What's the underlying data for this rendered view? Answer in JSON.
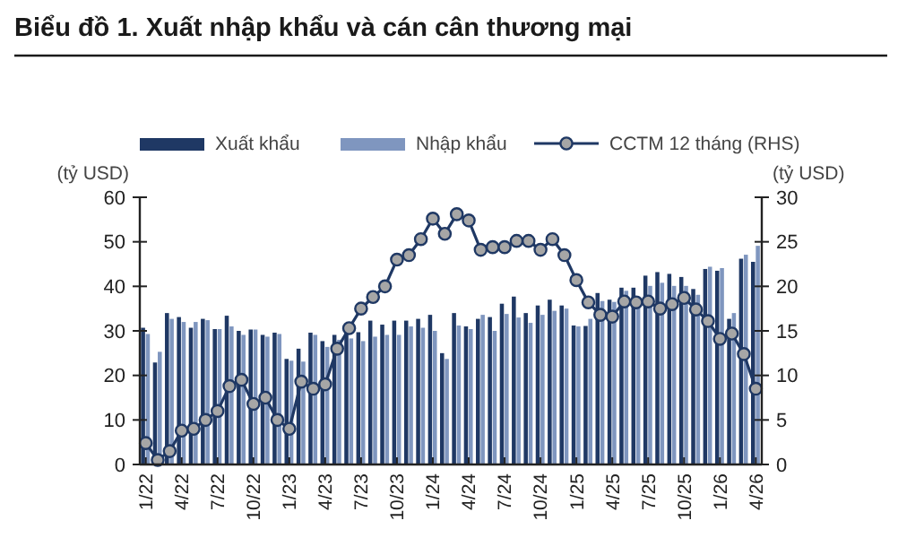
{
  "chart_data": {
    "type": "bar",
    "title": "Biểu đồ 1. Xuất nhập khẩu và cán cân thương mại",
    "ylabel": "(tỷ USD)",
    "y2label": "(tỷ USD)",
    "categories": [
      "1/22",
      null,
      null,
      "4/22",
      null,
      null,
      "7/22",
      null,
      null,
      "10/22",
      null,
      null,
      "1/23",
      null,
      null,
      "4/23",
      null,
      null,
      "7/23",
      null,
      null,
      "10/23",
      null,
      null,
      "1/24",
      null,
      null,
      "4/24",
      null,
      null,
      "7/24",
      null,
      null,
      "10/24",
      null,
      null,
      "1/25",
      null,
      null,
      "4/25",
      null,
      null,
      "7/25",
      null,
      null,
      "10/25",
      null,
      null,
      "1/26",
      null,
      null,
      "4/26"
    ],
    "series": [
      {
        "name": "Xuất khẩu",
        "color": "#1f3864",
        "values": [
          30.7,
          22.9,
          34.0,
          33.1,
          30.7,
          32.7,
          30.4,
          33.4,
          30.0,
          30.3,
          29.1,
          29.6,
          23.7,
          26.0,
          29.6,
          27.7,
          29.1,
          30.0,
          29.7,
          32.3,
          31.4,
          32.3,
          32.3,
          32.7,
          33.6,
          25.0,
          34.0,
          31.0,
          32.7,
          33.1,
          36.1,
          37.7,
          34.0,
          35.7,
          37.0,
          35.7,
          31.2,
          31.1,
          38.5,
          37.0,
          39.7,
          39.7,
          42.4,
          43.2,
          42.8,
          42.1,
          39.4,
          43.9,
          43.5,
          32.7,
          46.2,
          45.5
        ]
      },
      {
        "name": "Nhập khẩu",
        "color": "#7f96bf",
        "values": [
          29.3,
          25.3,
          32.7,
          32.0,
          32.0,
          32.4,
          30.4,
          31.0,
          29.1,
          30.3,
          28.7,
          29.3,
          23.3,
          23.1,
          29.1,
          26.4,
          28.0,
          28.3,
          27.7,
          28.7,
          29.1,
          29.1,
          31.0,
          30.7,
          30.0,
          23.7,
          31.2,
          30.4,
          33.6,
          30.0,
          33.8,
          33.0,
          31.8,
          33.6,
          34.5,
          35.0,
          31.0,
          32.7,
          36.7,
          36.5,
          39.0,
          37.7,
          40.1,
          40.8,
          40.1,
          40.1,
          38.1,
          44.4,
          44.1,
          34.0,
          47.1,
          49.1
        ]
      },
      {
        "name": "CCTM 12 tháng (RHS)",
        "type": "line",
        "axis": "y2",
        "color": "#1f3864",
        "values": [
          2.4,
          0.5,
          1.5,
          3.8,
          4,
          5,
          6,
          8.8,
          9.5,
          6.8,
          7.5,
          5,
          4,
          9.3,
          8.5,
          9,
          13,
          15.3,
          17.5,
          18.8,
          20,
          23,
          23.5,
          25.3,
          27.6,
          25.9,
          28.1,
          27.4,
          24.1,
          24.4,
          24.4,
          25.1,
          25.1,
          24.1,
          25.3,
          23.5,
          20.7,
          18.2,
          16.8,
          16.6,
          18.3,
          18.2,
          18.3,
          17.5,
          18.0,
          18.7,
          17.4,
          16.1,
          14.1,
          14.7,
          12.4,
          8.5
        ]
      }
    ],
    "ylim": [
      0,
      60
    ],
    "yticks": [
      0,
      10,
      20,
      30,
      40,
      50,
      60
    ],
    "y2lim": [
      0,
      30
    ],
    "y2ticks": [
      0,
      5,
      10,
      15,
      20,
      25,
      30
    ],
    "legend": "top",
    "marker": "circle",
    "grid": false
  }
}
